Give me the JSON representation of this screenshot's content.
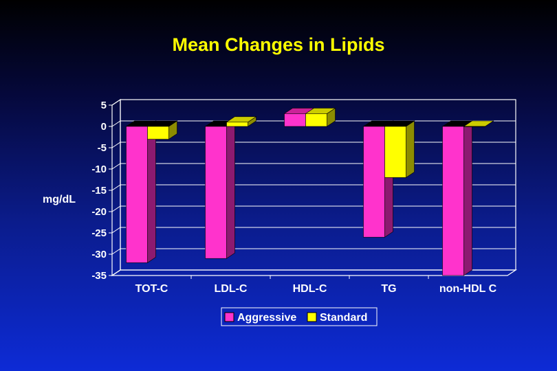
{
  "chart_data": {
    "type": "bar",
    "title": "Mean Changes in Lipids",
    "ylabel": "mg/dL",
    "xlabel": "",
    "categories": [
      "TOT-C",
      "LDL-C",
      "HDL-C",
      "TG",
      "non-HDL C"
    ],
    "series": [
      {
        "name": "Aggressive",
        "values": [
          -32,
          -31,
          3,
          -26,
          -35
        ]
      },
      {
        "name": "Standard",
        "values": [
          -3,
          1,
          3,
          -12,
          0
        ]
      }
    ],
    "ylim": [
      -35,
      5
    ],
    "yticks": [
      5,
      0,
      -5,
      -10,
      -15,
      -20,
      -25,
      -30,
      -35
    ],
    "grid": true,
    "legend_position": "bottom",
    "three_d": true
  },
  "colors": {
    "title": "#ffff00",
    "aggressive": "#ff33cc",
    "aggressive_side": "#8c1a70",
    "aggressive_top": "#cc2299",
    "standard": "#ffff00",
    "standard_side": "#8c8c00",
    "standard_top": "#cccc00",
    "axis": "#ffffff"
  }
}
